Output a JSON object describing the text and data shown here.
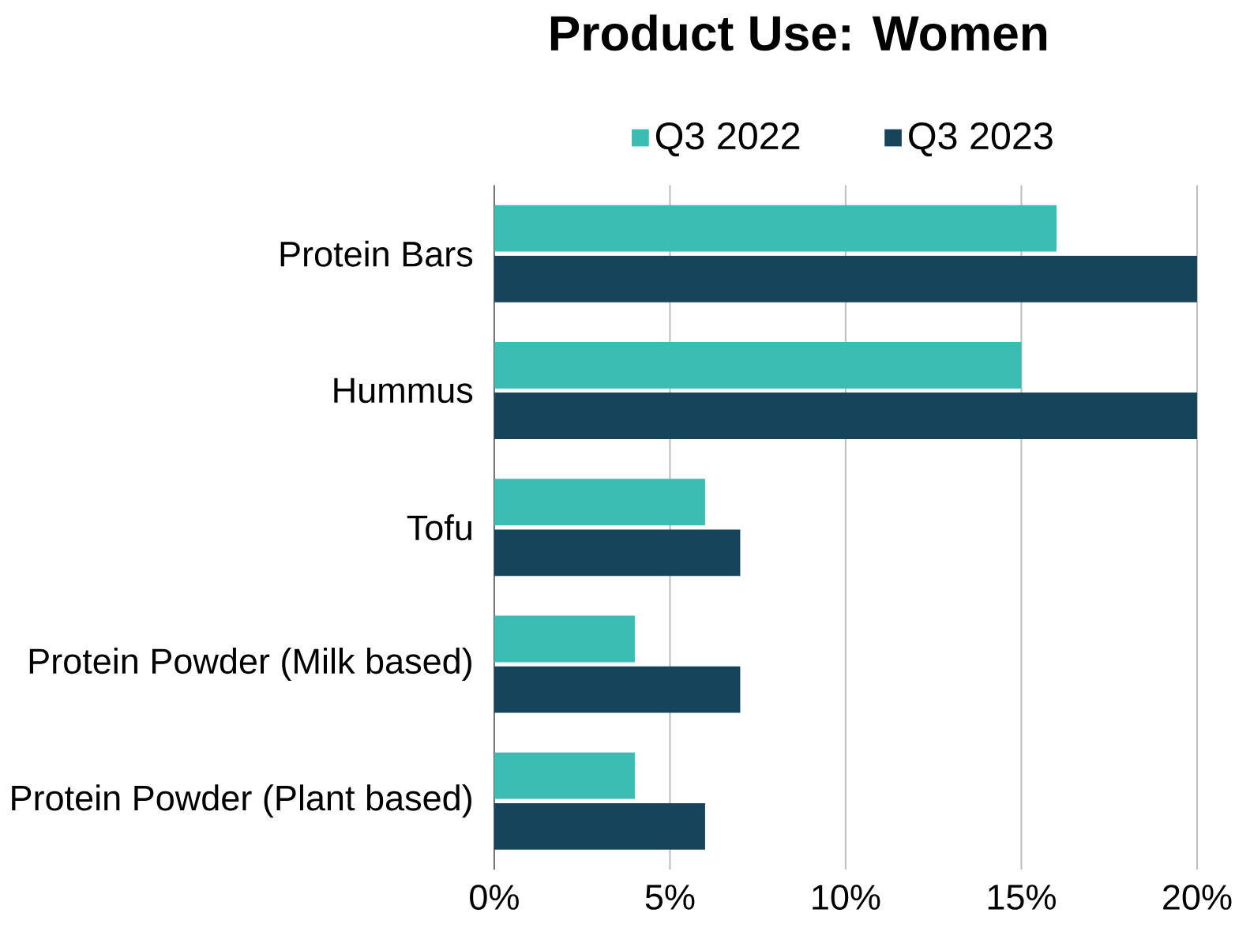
{
  "chart_data": {
    "type": "bar",
    "orientation": "horizontal",
    "title": "Product Use: Women",
    "categories": [
      "Protein Bars",
      "Hummus",
      "Tofu",
      "Protein Powder (Milk based)",
      "Protein Powder (Plant based)"
    ],
    "series": [
      {
        "name": "Q3 2022",
        "color": "#3bbdb3",
        "values": [
          16,
          15,
          6,
          4,
          4
        ]
      },
      {
        "name": "Q3 2023",
        "color": "#16445a",
        "values": [
          20,
          20,
          7,
          7,
          6
        ]
      }
    ],
    "xlim": [
      0,
      20
    ],
    "xticks": [
      {
        "value": 0,
        "label": "0%"
      },
      {
        "value": 5,
        "label": "5%"
      },
      {
        "value": 10,
        "label": "10%"
      },
      {
        "value": 15,
        "label": "15%"
      },
      {
        "value": 20,
        "label": "20%"
      }
    ],
    "grid": "x",
    "legend": "top"
  }
}
